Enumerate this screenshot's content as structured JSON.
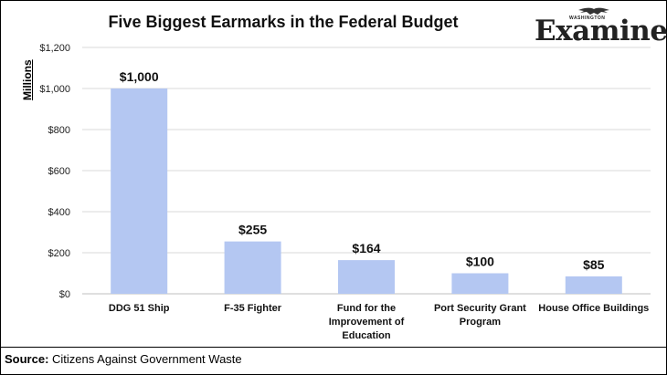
{
  "chart_data": {
    "type": "bar",
    "title": "Five Biggest Earmarks in the Federal Budget",
    "ylabel": "Millions",
    "categories": [
      [
        "DDG 51 Ship"
      ],
      [
        "F-35 Fighter"
      ],
      [
        "Fund for the",
        "Improvement of",
        "Education"
      ],
      [
        "Port Security Grant",
        "Program"
      ],
      [
        "House Office Buildings"
      ]
    ],
    "values": [
      1000,
      255,
      164,
      100,
      85
    ],
    "data_labels": [
      "$1,000",
      "$255",
      "$164",
      "$100",
      "$85"
    ],
    "ylim": [
      0,
      1200
    ],
    "yticks": [
      0,
      200,
      400,
      600,
      800,
      1000,
      1200
    ],
    "ytick_labels": [
      "$0",
      "$200",
      "$400",
      "$600",
      "$800",
      "$1,000",
      "$1,200"
    ],
    "grid": true,
    "bar_color": "#b4c7f2"
  },
  "logo": {
    "top_text": "WASHINGTON",
    "name": "Examiner"
  },
  "source": {
    "label": "Source:",
    "text": "Citizens Against Government Waste"
  }
}
